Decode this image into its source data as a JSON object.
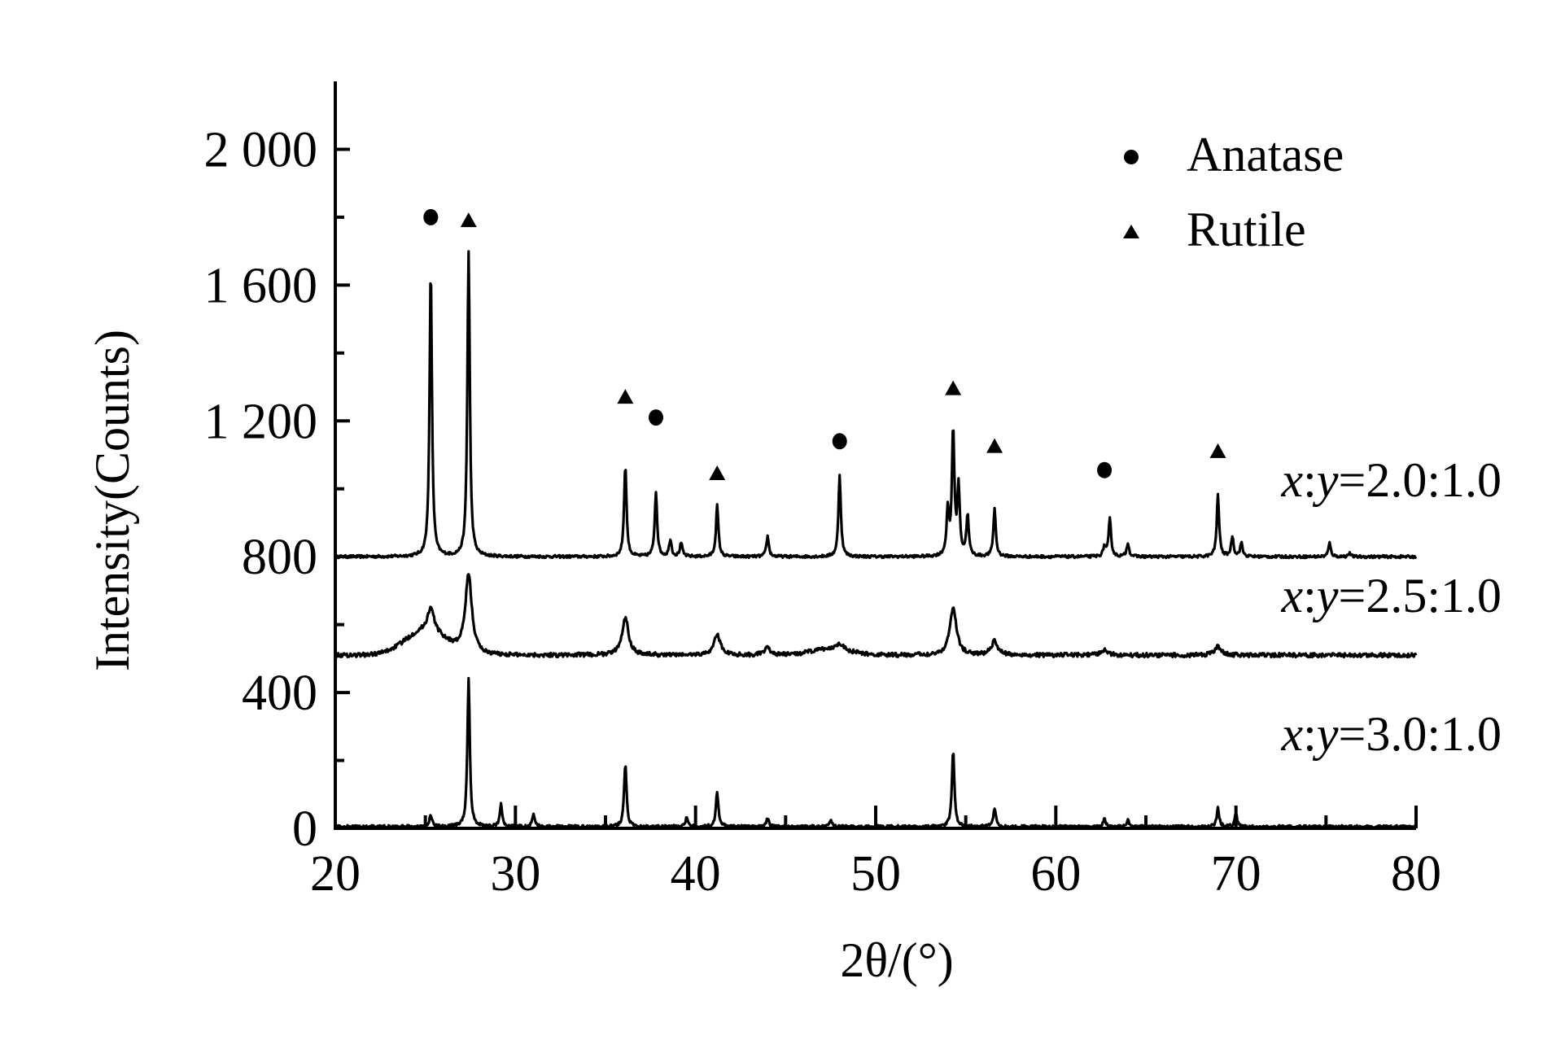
{
  "chart_data": {
    "type": "line",
    "xlabel": "2θ/(°)",
    "ylabel": "Intensity(Counts)",
    "xlim": [
      20,
      80
    ],
    "ylim": [
      0,
      2200
    ],
    "x_ticks": [
      20,
      30,
      40,
      50,
      60,
      70,
      80
    ],
    "x_tick_labels": [
      "20",
      "30",
      "40",
      "50",
      "60",
      "70",
      "80"
    ],
    "y_ticks": [
      0,
      400,
      800,
      1200,
      1600,
      2000
    ],
    "y_tick_labels": [
      "0",
      "400",
      "800",
      "1 200",
      "1 600",
      "2 000"
    ],
    "legend": {
      "position": "top-right",
      "entries": [
        {
          "label": "Anatase",
          "marker": "circle"
        },
        {
          "label": "Rutile",
          "marker": "triangle"
        }
      ]
    },
    "series": [
      {
        "name": "x:y=2.0:1.0",
        "baseline": 800,
        "x": [
          25.3,
          27.4,
          36.1,
          37.8,
          38.6,
          39.2,
          41.2,
          44.0,
          48.0,
          54.0,
          54.3,
          54.6,
          55.1,
          56.6,
          62.7,
          63.0,
          64.0,
          69.0,
          69.8,
          70.3,
          75.2,
          76.3
        ],
        "y": [
          1650,
          1700,
          1070,
          990,
          850,
          840,
          950,
          860,
          1040,
          930,
          1170,
          1000,
          920,
          940,
          830,
          910,
          840,
          980,
          860,
          840,
          840,
          810
        ]
      },
      {
        "name": "x:y=2.5:1.0",
        "baseline": 510,
        "x": [
          25.3,
          27.4,
          36.1,
          41.2,
          44.0,
          48.0,
          54.3,
          56.6,
          62.7,
          69.0
        ],
        "y": [
          580,
          740,
          620,
          570,
          530,
          530,
          650,
          550,
          525,
          535
        ]
      },
      {
        "name": "x:y=3.0:1.0",
        "baseline": 5,
        "x": [
          25.3,
          27.4,
          29.2,
          31.0,
          36.1,
          39.5,
          41.2,
          44.0,
          47.5,
          54.3,
          56.6,
          62.7,
          64.0,
          69.0,
          70.0
        ],
        "y": [
          40,
          440,
          70,
          40,
          190,
          30,
          110,
          30,
          25,
          230,
          60,
          30,
          25,
          60,
          45
        ]
      }
    ],
    "markers": [
      {
        "phase": "Anatase",
        "x": 25.3,
        "y": 1800
      },
      {
        "phase": "Rutile",
        "x": 27.4,
        "y": 1790
      },
      {
        "phase": "Rutile",
        "x": 36.1,
        "y": 1270
      },
      {
        "phase": "Anatase",
        "x": 37.8,
        "y": 1210
      },
      {
        "phase": "Rutile",
        "x": 41.2,
        "y": 1045
      },
      {
        "phase": "Anatase",
        "x": 48.0,
        "y": 1140
      },
      {
        "phase": "Rutile",
        "x": 54.3,
        "y": 1295
      },
      {
        "phase": "Rutile",
        "x": 56.6,
        "y": 1125
      },
      {
        "phase": "Anatase",
        "x": 62.7,
        "y": 1055
      },
      {
        "phase": "Rutile",
        "x": 69.0,
        "y": 1110
      }
    ]
  }
}
